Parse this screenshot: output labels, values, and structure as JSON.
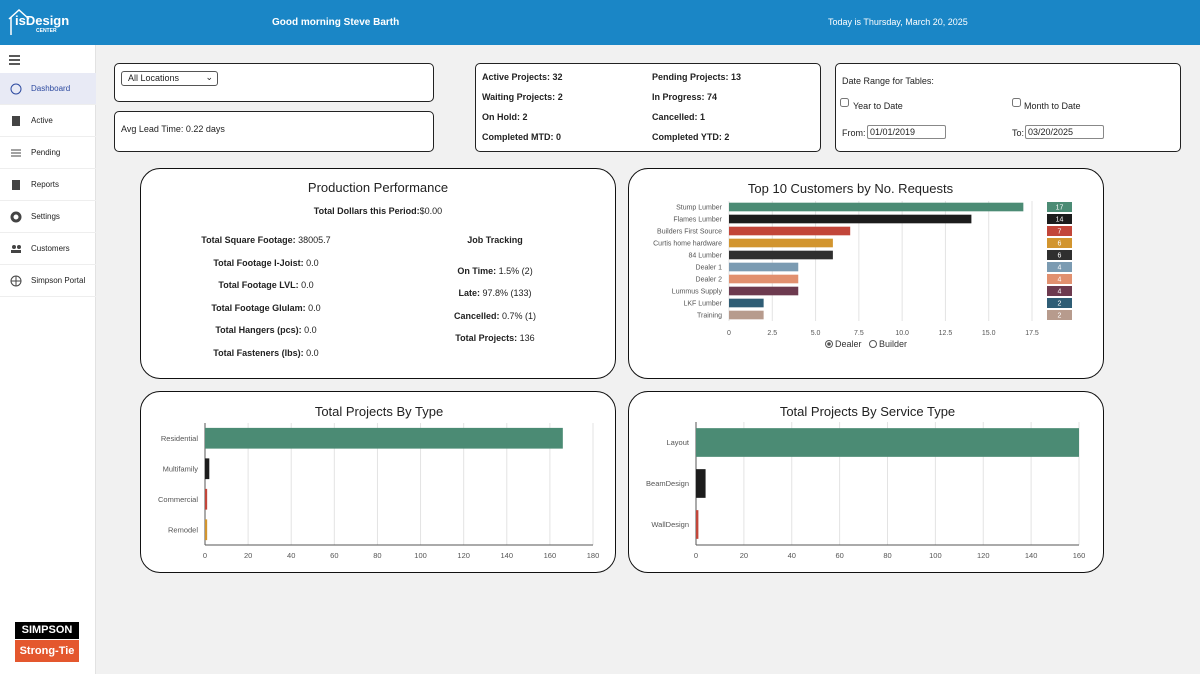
{
  "header": {
    "logo": "isDesign",
    "logo_sub": "CENTER",
    "greeting": "Good morning Steve Barth",
    "date": "Today is Thursday, March 20, 2025"
  },
  "sidebar": {
    "items": [
      "Dashboard",
      "Active",
      "Pending",
      "Reports",
      "Settings",
      "Customers",
      "Simpson Portal"
    ],
    "brand_top": "SIMPSON",
    "brand_bottom": "Strong-Tie"
  },
  "filters": {
    "location": "All Locations",
    "lead_time": "Avg Lead Time: 0.22 days"
  },
  "stats": [
    {
      "label": "Active Projects:",
      "value": 32
    },
    {
      "label": "Pending Projects:",
      "value": 13
    },
    {
      "label": "Waiting Projects:",
      "value": 2
    },
    {
      "label": "In Progress:",
      "value": 74
    },
    {
      "label": "On Hold:",
      "value": 2
    },
    {
      "label": "Cancelled:",
      "value": 1
    },
    {
      "label": "Completed MTD:",
      "value": 0
    },
    {
      "label": "Completed YTD:",
      "value": 2
    }
  ],
  "date_range": {
    "title": "Date Range for Tables:",
    "year_to_date": "Year to Date",
    "month_to_date": "Month to Date",
    "from_label": "From:",
    "from": "01/01/2019",
    "to_label": "To:",
    "to": "03/20/2025"
  },
  "production": {
    "title": "Production Performance",
    "dollars_label": "Total Dollars this Period:",
    "dollars": "$0.00",
    "metrics": [
      {
        "label": "Total Square Footage:",
        "value": "38005.7"
      },
      {
        "label": "Total Footage I-Joist:",
        "value": "0.0"
      },
      {
        "label": "Total Footage LVL:",
        "value": "0.0"
      },
      {
        "label": "Total Footage Glulam:",
        "value": "0.0"
      },
      {
        "label": "Total Hangers (pcs):",
        "value": "0.0"
      },
      {
        "label": "Total Fasteners (lbs):",
        "value": "0.0"
      }
    ],
    "job_tracking_title": "Job Tracking",
    "job_tracking": [
      {
        "label": "On Time:",
        "value": "1.5% (2)"
      },
      {
        "label": "Late:",
        "value": "97.8% (133)"
      },
      {
        "label": "Cancelled:",
        "value": "0.7% (1)"
      },
      {
        "label": "Total Projects:",
        "value": "136"
      }
    ]
  },
  "chart_data": [
    {
      "type": "bar",
      "orientation": "horizontal",
      "title": "Top 10 Customers by No. Requests",
      "categories": [
        "Stump Lumber",
        "Flames Lumber",
        "Builders First Source",
        "Curtis home hardware",
        "84 Lumber",
        "Dealer 1",
        "Dealer 2",
        "Lummus Supply",
        "LKF Lumber",
        "Training"
      ],
      "values": [
        17,
        14,
        7,
        6,
        6,
        4,
        4,
        4,
        2,
        2
      ],
      "colors": [
        "#4b8b74",
        "#1c1c1c",
        "#c2463a",
        "#d2952f",
        "#2f2f2f",
        "#7b9bb2",
        "#e1906f",
        "#6d3a4f",
        "#2f5d75",
        "#b79b8d"
      ],
      "xlim": [
        0,
        17.5
      ],
      "xticks": [
        0,
        2.5,
        {
          "value": 5,
          "label": "5.0"
        },
        7.5,
        {
          "value": 10,
          "label": "10.0"
        },
        12.5,
        {
          "value": 15,
          "label": "15.0"
        },
        17.5
      ],
      "grid": true,
      "filter_options": [
        "Dealer",
        "Builder"
      ]
    },
    {
      "type": "bar",
      "orientation": "horizontal",
      "title": "Total Projects By Type",
      "categories": [
        "Residential",
        "Multifamily",
        "Commercial",
        "Remodel"
      ],
      "values": [
        166,
        2,
        1,
        1
      ],
      "colors": [
        "#4b8b74",
        "#1c1c1c",
        "#c2463a",
        "#d2952f"
      ],
      "xlim": [
        0,
        180
      ],
      "xticks": [
        0,
        20,
        40,
        60,
        80,
        100,
        120,
        140,
        160,
        180
      ],
      "grid": true
    },
    {
      "type": "bar",
      "orientation": "horizontal",
      "title": "Total Projects By Service Type",
      "categories": [
        "Layout",
        "BeamDesign",
        "WallDesign"
      ],
      "values": [
        160,
        4,
        1
      ],
      "colors": [
        "#4b8b74",
        "#1c1c1c",
        "#c2463a"
      ],
      "xlim": [
        0,
        160
      ],
      "xticks": [
        0,
        20,
        40,
        60,
        80,
        100,
        120,
        140,
        160
      ],
      "grid": true
    }
  ]
}
